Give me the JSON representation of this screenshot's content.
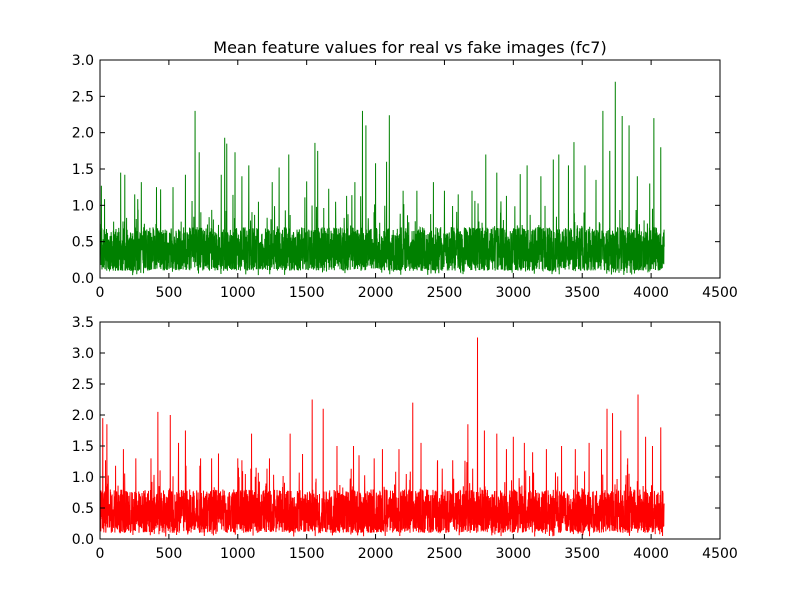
{
  "figure": {
    "title": "Mean feature values for real vs fake images (fc7)",
    "background": "#ffffff"
  },
  "chart_data": [
    {
      "type": "line",
      "title": "Mean feature values for real vs fake images (fc7)",
      "xlabel": "",
      "ylabel": "",
      "xlim": [
        0,
        4500
      ],
      "ylim": [
        0,
        3.0
      ],
      "xticks": [
        "0",
        "500",
        "1000",
        "1500",
        "2000",
        "2500",
        "3000",
        "3500",
        "4000",
        "4500"
      ],
      "yticks": [
        "0.0",
        "0.5",
        "1.0",
        "1.5",
        "2.0",
        "2.5",
        "3.0"
      ],
      "grid": false,
      "series": [
        {
          "color": "#008000",
          "n_points": 4096,
          "x_range": [
            0,
            4095
          ],
          "typical_range": [
            0.1,
            0.7
          ],
          "peaks": [
            {
              "x": 10,
              "y": 1.27
            },
            {
              "x": 150,
              "y": 1.45
            },
            {
              "x": 180,
              "y": 1.42
            },
            {
              "x": 300,
              "y": 1.32
            },
            {
              "x": 410,
              "y": 1.25
            },
            {
              "x": 440,
              "y": 1.22
            },
            {
              "x": 530,
              "y": 1.25
            },
            {
              "x": 620,
              "y": 1.42
            },
            {
              "x": 690,
              "y": 2.3
            },
            {
              "x": 720,
              "y": 1.73
            },
            {
              "x": 880,
              "y": 1.42
            },
            {
              "x": 905,
              "y": 1.93
            },
            {
              "x": 920,
              "y": 1.85
            },
            {
              "x": 980,
              "y": 1.73
            },
            {
              "x": 1030,
              "y": 1.4
            },
            {
              "x": 1080,
              "y": 1.55
            },
            {
              "x": 1150,
              "y": 1.05
            },
            {
              "x": 1250,
              "y": 1.32
            },
            {
              "x": 1300,
              "y": 1.52
            },
            {
              "x": 1370,
              "y": 1.7
            },
            {
              "x": 1500,
              "y": 1.33
            },
            {
              "x": 1560,
              "y": 1.86
            },
            {
              "x": 1580,
              "y": 1.75
            },
            {
              "x": 1710,
              "y": 1.05
            },
            {
              "x": 1790,
              "y": 1.13
            },
            {
              "x": 1850,
              "y": 1.32
            },
            {
              "x": 1905,
              "y": 2.3
            },
            {
              "x": 1930,
              "y": 2.1
            },
            {
              "x": 2000,
              "y": 1.58
            },
            {
              "x": 2080,
              "y": 1.6
            },
            {
              "x": 2100,
              "y": 2.24
            },
            {
              "x": 2200,
              "y": 1.2
            },
            {
              "x": 2300,
              "y": 1.2
            },
            {
              "x": 2420,
              "y": 1.32
            },
            {
              "x": 2500,
              "y": 1.2
            },
            {
              "x": 2600,
              "y": 1.15
            },
            {
              "x": 2700,
              "y": 1.2
            },
            {
              "x": 2800,
              "y": 1.7
            },
            {
              "x": 2880,
              "y": 1.45
            },
            {
              "x": 2950,
              "y": 1.13
            },
            {
              "x": 3050,
              "y": 1.43
            },
            {
              "x": 3100,
              "y": 1.55
            },
            {
              "x": 3200,
              "y": 1.4
            },
            {
              "x": 3290,
              "y": 1.63
            },
            {
              "x": 3330,
              "y": 1.7
            },
            {
              "x": 3400,
              "y": 1.55
            },
            {
              "x": 3440,
              "y": 1.87
            },
            {
              "x": 3520,
              "y": 1.55
            },
            {
              "x": 3600,
              "y": 1.35
            },
            {
              "x": 3650,
              "y": 2.3
            },
            {
              "x": 3700,
              "y": 1.75
            },
            {
              "x": 3740,
              "y": 2.7
            },
            {
              "x": 3790,
              "y": 2.23
            },
            {
              "x": 3840,
              "y": 2.1
            },
            {
              "x": 3900,
              "y": 1.4
            },
            {
              "x": 3990,
              "y": 1.3
            },
            {
              "x": 4020,
              "y": 2.2
            },
            {
              "x": 4070,
              "y": 1.8
            }
          ]
        }
      ]
    },
    {
      "type": "line",
      "title": "",
      "xlabel": "",
      "ylabel": "",
      "xlim": [
        0,
        4500
      ],
      "ylim": [
        0,
        3.5
      ],
      "xticks": [
        "0",
        "500",
        "1000",
        "1500",
        "2000",
        "2500",
        "3000",
        "3500",
        "4000",
        "4500"
      ],
      "yticks": [
        "0.0",
        "0.5",
        "1.0",
        "1.5",
        "2.0",
        "2.5",
        "3.0",
        "3.5"
      ],
      "grid": false,
      "series": [
        {
          "color": "#ff0000",
          "n_points": 4096,
          "x_range": [
            0,
            4095
          ],
          "typical_range": [
            0.1,
            0.8
          ],
          "peaks": [
            {
              "x": 20,
              "y": 1.95
            },
            {
              "x": 50,
              "y": 1.85
            },
            {
              "x": 170,
              "y": 1.45
            },
            {
              "x": 260,
              "y": 1.3
            },
            {
              "x": 370,
              "y": 1.3
            },
            {
              "x": 420,
              "y": 2.05
            },
            {
              "x": 510,
              "y": 2.0
            },
            {
              "x": 570,
              "y": 1.55
            },
            {
              "x": 620,
              "y": 1.75
            },
            {
              "x": 730,
              "y": 1.3
            },
            {
              "x": 810,
              "y": 1.3
            },
            {
              "x": 860,
              "y": 1.38
            },
            {
              "x": 1000,
              "y": 1.3
            },
            {
              "x": 1030,
              "y": 1.27
            },
            {
              "x": 1100,
              "y": 1.7
            },
            {
              "x": 1230,
              "y": 1.3
            },
            {
              "x": 1380,
              "y": 1.7
            },
            {
              "x": 1470,
              "y": 1.37
            },
            {
              "x": 1540,
              "y": 2.25
            },
            {
              "x": 1620,
              "y": 2.1
            },
            {
              "x": 1720,
              "y": 1.5
            },
            {
              "x": 1840,
              "y": 1.5
            },
            {
              "x": 1880,
              "y": 1.35
            },
            {
              "x": 1990,
              "y": 1.3
            },
            {
              "x": 2050,
              "y": 1.45
            },
            {
              "x": 2170,
              "y": 1.45
            },
            {
              "x": 2270,
              "y": 2.2
            },
            {
              "x": 2330,
              "y": 1.55
            },
            {
              "x": 2450,
              "y": 1.27
            },
            {
              "x": 2560,
              "y": 1.27
            },
            {
              "x": 2670,
              "y": 1.85
            },
            {
              "x": 2740,
              "y": 3.25
            },
            {
              "x": 2790,
              "y": 1.75
            },
            {
              "x": 2880,
              "y": 1.7
            },
            {
              "x": 2950,
              "y": 1.45
            },
            {
              "x": 3000,
              "y": 1.65
            },
            {
              "x": 3080,
              "y": 1.55
            },
            {
              "x": 3140,
              "y": 1.4
            },
            {
              "x": 3240,
              "y": 1.45
            },
            {
              "x": 3350,
              "y": 1.5
            },
            {
              "x": 3450,
              "y": 1.45
            },
            {
              "x": 3550,
              "y": 1.55
            },
            {
              "x": 3640,
              "y": 1.45
            },
            {
              "x": 3680,
              "y": 2.1
            },
            {
              "x": 3720,
              "y": 2.03
            },
            {
              "x": 3780,
              "y": 1.75
            },
            {
              "x": 3830,
              "y": 1.3
            },
            {
              "x": 3905,
              "y": 2.33
            },
            {
              "x": 3960,
              "y": 1.65
            },
            {
              "x": 4010,
              "y": 1.5
            },
            {
              "x": 4070,
              "y": 1.8
            }
          ]
        }
      ]
    }
  ]
}
